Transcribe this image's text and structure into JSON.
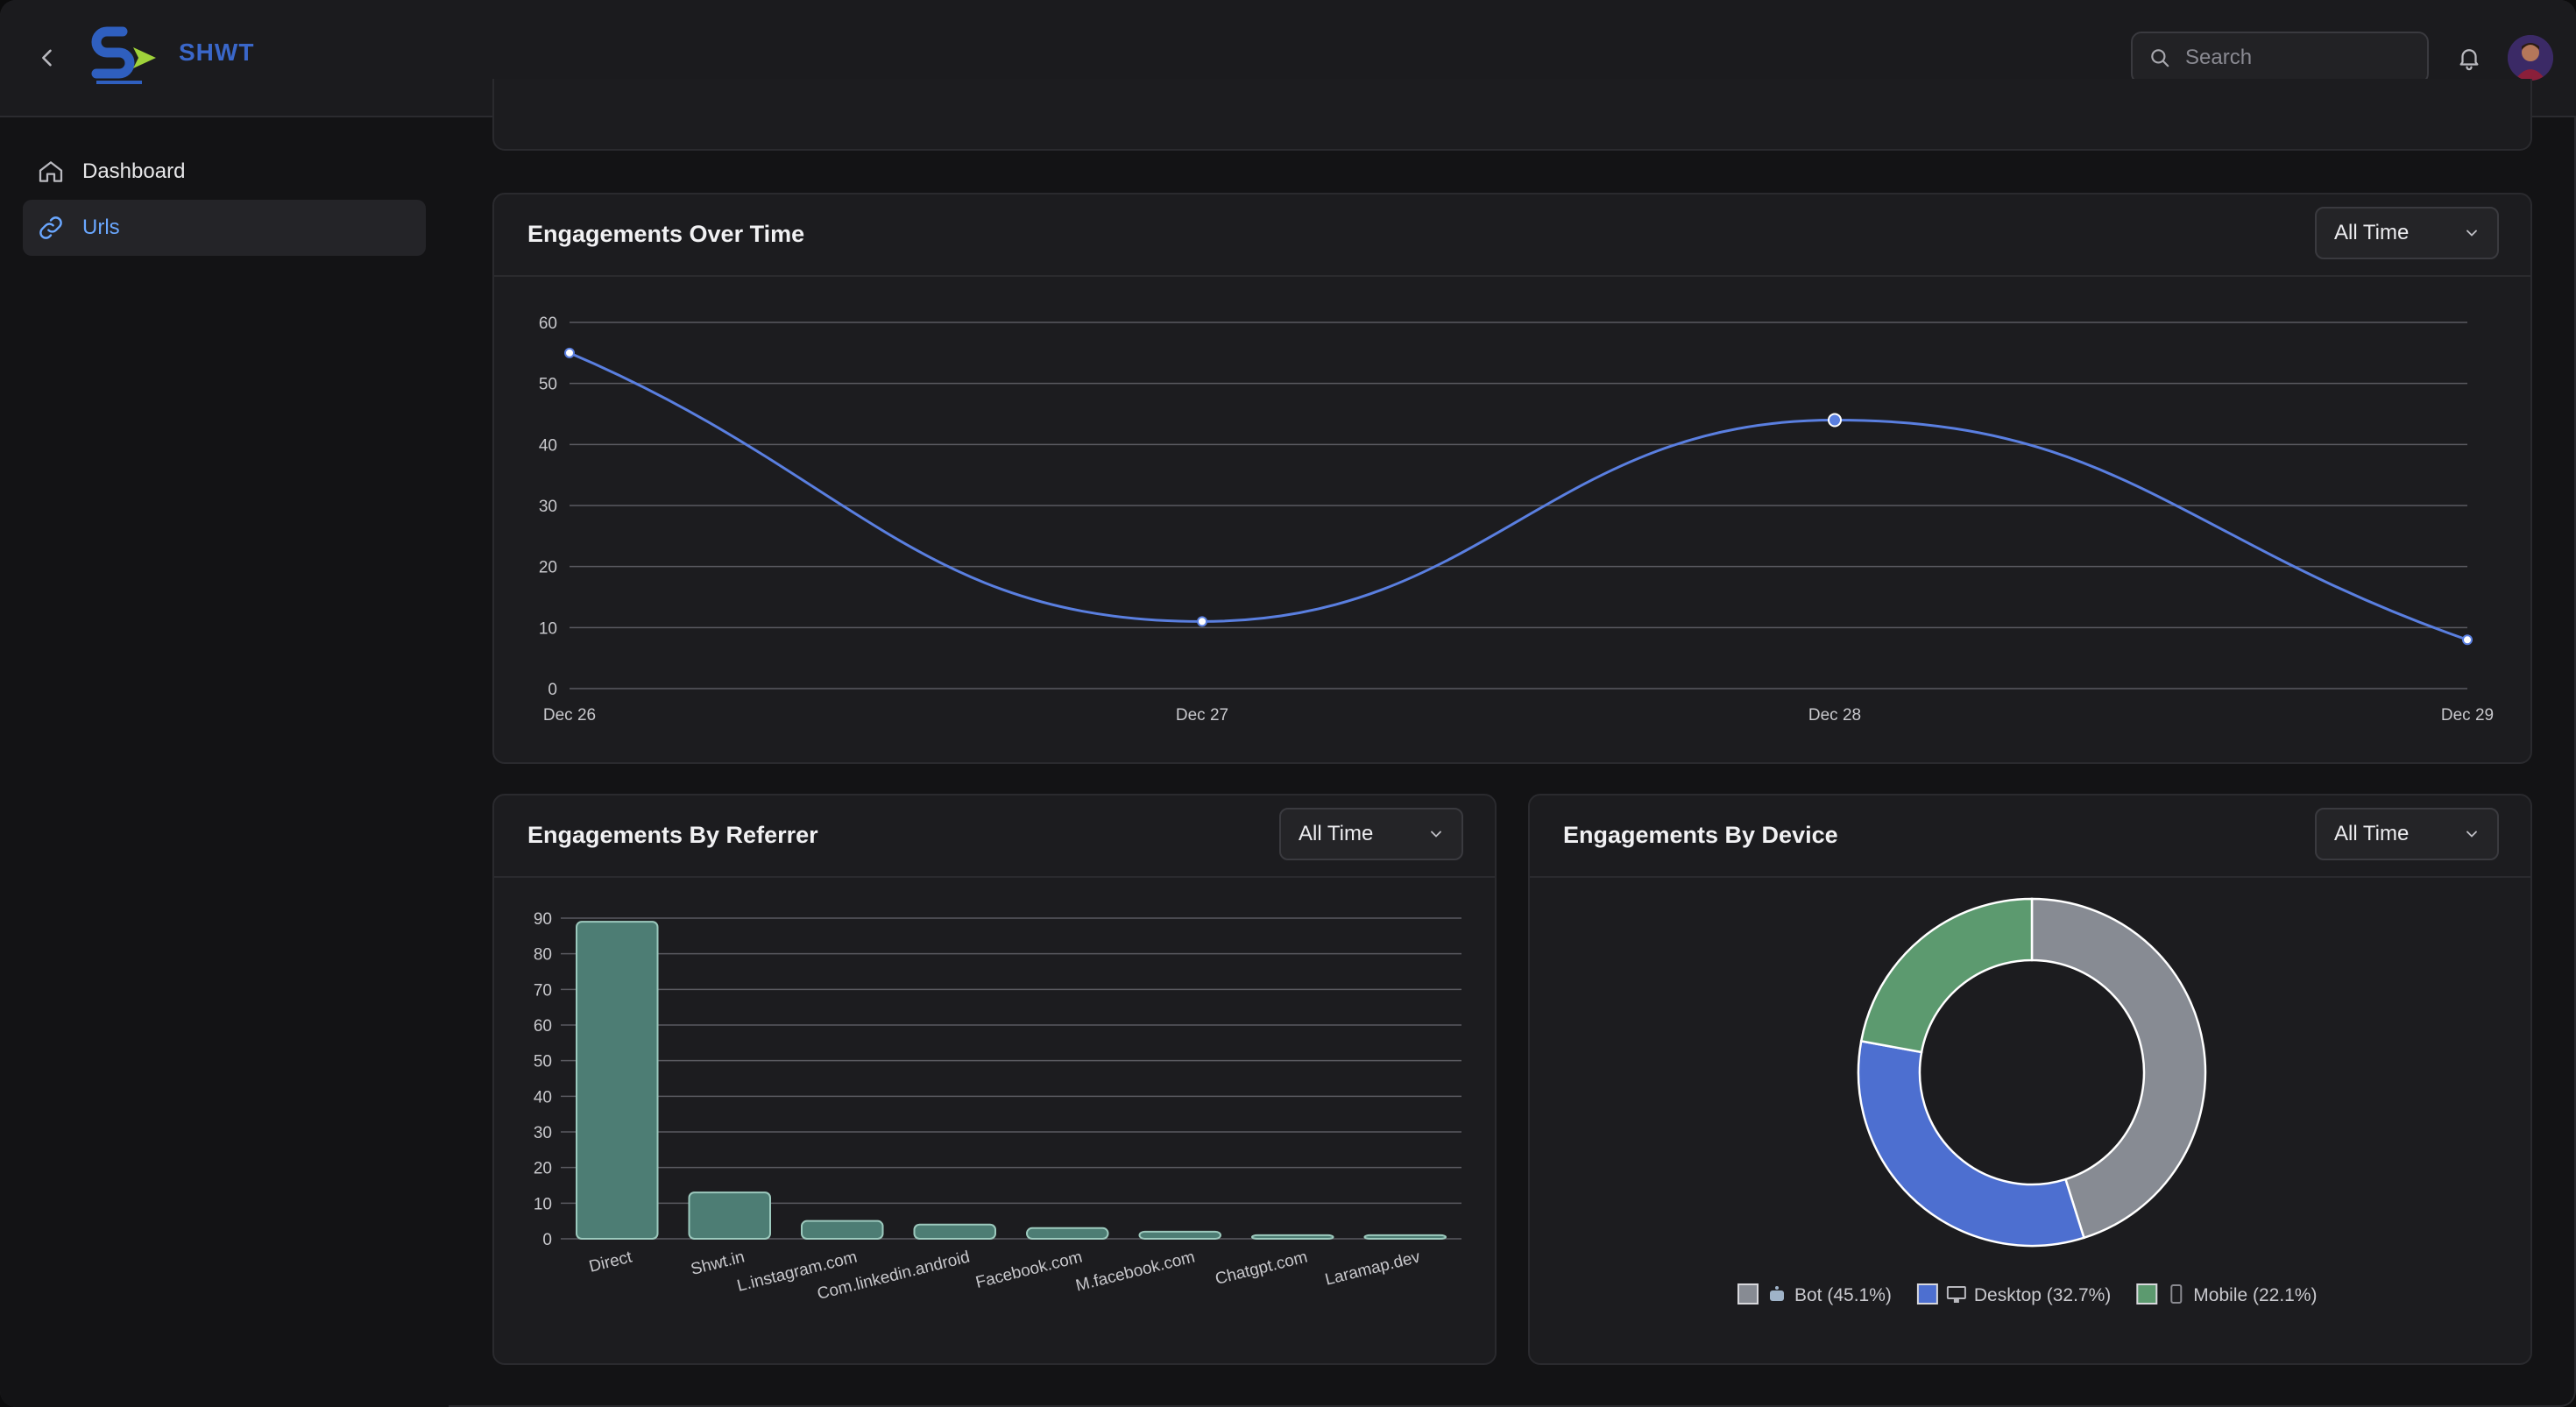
{
  "header": {
    "logo_text": "SHWT",
    "search_placeholder": "Search"
  },
  "sidebar": {
    "items": [
      {
        "label": "Dashboard",
        "icon": "home-icon",
        "active": false
      },
      {
        "label": "Urls",
        "icon": "link-icon",
        "active": true
      }
    ]
  },
  "engagements_over_time": {
    "title": "Engagements Over Time",
    "filter": "All Time"
  },
  "engagements_by_referrer": {
    "title": "Engagements By Referrer",
    "filter": "All Time"
  },
  "engagements_by_device": {
    "title": "Engagements By Device",
    "filter": "All Time"
  },
  "colors": {
    "line": "#5a7fe0",
    "bar_fill": "#4d7d74",
    "bar_stroke": "#9cc9bd",
    "bot": "#878b93",
    "desktop": "#4d6fd0",
    "mobile": "#5c9a6f",
    "grid": "#5a5a60",
    "tick": "#c8c8cc"
  },
  "chart_data": [
    {
      "type": "line",
      "title": "Engagements Over Time",
      "categories": [
        "Dec 26",
        "Dec 27",
        "Dec 28",
        "Dec 29"
      ],
      "series": [
        {
          "values": [
            55,
            11,
            44,
            8
          ]
        }
      ],
      "ylim": [
        0,
        60
      ],
      "yticks": [
        0,
        10,
        20,
        30,
        40,
        50,
        60
      ],
      "grid": true
    },
    {
      "type": "bar",
      "title": "Engagements By Referrer",
      "categories": [
        "Direct",
        "Shwt.in",
        "L.instagram.com",
        "Com.linkedin.android",
        "Facebook.com",
        "M.facebook.com",
        "Chatgpt.com",
        "Laramap.dev"
      ],
      "values": [
        89,
        13,
        5,
        4,
        3,
        2,
        1,
        1
      ],
      "ylim": [
        0,
        90
      ],
      "yticks": [
        0,
        10,
        20,
        30,
        40,
        50,
        60,
        70,
        80,
        90
      ],
      "grid": true
    },
    {
      "type": "pie",
      "title": "Engagements By Device",
      "legend_position": "bottom",
      "slices": [
        {
          "name": "Bot",
          "value": 45.1,
          "label": "Bot (45.1%)",
          "color": "#878b93"
        },
        {
          "name": "Desktop",
          "value": 32.7,
          "label": "Desktop (32.7%)",
          "color": "#4d6fd0"
        },
        {
          "name": "Mobile",
          "value": 22.1,
          "label": "Mobile (22.1%)",
          "color": "#5c9a6f"
        }
      ]
    }
  ]
}
